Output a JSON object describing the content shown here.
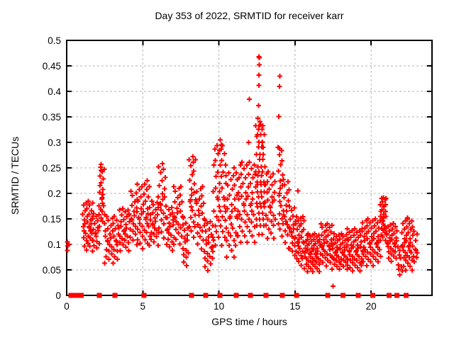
{
  "chart_data": {
    "type": "scatter",
    "title": "Day 353 of 2022, SRMTID for receiver karr",
    "xlabel": "GPS time / hours",
    "ylabel": "SRMTID / TECUs",
    "xlim": [
      0,
      24
    ],
    "ylim": [
      0,
      0.5
    ],
    "x_ticks": [
      0,
      5,
      10,
      15,
      20
    ],
    "x_tick_labels": [
      "0",
      "5",
      "10",
      "15",
      "20"
    ],
    "y_ticks": [
      0,
      0.05,
      0.1,
      0.15,
      0.2,
      0.25,
      0.3,
      0.35,
      0.4,
      0.45,
      0.5
    ],
    "y_tick_labels": [
      "0",
      "0.05",
      "0.1",
      "0.15",
      "0.2",
      "0.25",
      "0.3",
      "0.35",
      "0.4",
      "0.45",
      "0.5"
    ],
    "grid_x": [
      5,
      10,
      15,
      20
    ],
    "grid_y": [
      0.05,
      0.1,
      0.15,
      0.2,
      0.25,
      0.3,
      0.35,
      0.4,
      0.45
    ],
    "grid_on": true,
    "legend": "none",
    "colors": {
      "marker": "#ff0000",
      "grid": "#b4b4b4",
      "axis": "#000000",
      "background": "#ffffff",
      "text": "#000000"
    },
    "marker": {
      "shape": "plus",
      "size": 7,
      "stroke": 2
    },
    "baseline_marker": {
      "shape": "filled-square",
      "size": 7
    },
    "points_explicit": [
      [
        0.05,
        0.105
      ],
      [
        0.06,
        0.097
      ],
      [
        0.05,
        0.088
      ],
      [
        0.15,
        0.1
      ],
      [
        12.62,
        0.468
      ],
      [
        12.66,
        0.466
      ],
      [
        12.65,
        0.452
      ],
      [
        12.64,
        0.432
      ],
      [
        12.63,
        0.412
      ],
      [
        12.6,
        0.372
      ],
      [
        12.56,
        0.347
      ],
      [
        12.7,
        0.34
      ],
      [
        12.75,
        0.335
      ],
      [
        12.5,
        0.312
      ],
      [
        12.85,
        0.3
      ],
      [
        12.9,
        0.29
      ],
      [
        12.0,
        0.385
      ],
      [
        11.95,
        0.3
      ],
      [
        14.0,
        0.43
      ],
      [
        13.97,
        0.41
      ],
      [
        13.94,
        0.351
      ],
      [
        13.99,
        0.288
      ],
      [
        10.1,
        0.305
      ],
      [
        10.15,
        0.295
      ],
      [
        10.05,
        0.285
      ],
      [
        8.3,
        0.272
      ],
      [
        6.3,
        0.258
      ],
      [
        2.25,
        0.257
      ],
      [
        2.27,
        0.245
      ],
      [
        5.3,
        0.225
      ],
      [
        11.0,
        0.25
      ],
      [
        15.2,
        0.205
      ],
      [
        20.8,
        0.192
      ],
      [
        20.82,
        0.175
      ],
      [
        22.4,
        0.152
      ],
      [
        17.5,
        0.018
      ]
    ],
    "point_bands": [
      [
        1.08,
        1.68,
        0.06,
        3,
        0.08,
        0.19
      ],
      [
        1.7,
        2.1,
        0.08,
        3,
        0.08,
        0.165
      ],
      [
        2.15,
        2.45,
        0.05,
        3,
        0.125,
        0.258
      ],
      [
        2.5,
        3.4,
        0.08,
        3,
        0.055,
        0.16
      ],
      [
        3.45,
        4.1,
        0.08,
        3,
        0.08,
        0.175
      ],
      [
        4.15,
        4.6,
        0.08,
        3,
        0.09,
        0.21
      ],
      [
        4.65,
        5.4,
        0.07,
        3,
        0.08,
        0.225
      ],
      [
        5.45,
        6.0,
        0.08,
        3,
        0.09,
        0.19
      ],
      [
        6.05,
        6.5,
        0.07,
        3,
        0.1,
        0.26
      ],
      [
        6.55,
        7.0,
        0.08,
        3,
        0.08,
        0.18
      ],
      [
        7.05,
        7.6,
        0.08,
        3,
        0.09,
        0.22
      ],
      [
        7.65,
        8.0,
        0.08,
        3,
        0.05,
        0.15
      ],
      [
        8.05,
        8.5,
        0.06,
        3,
        0.1,
        0.275
      ],
      [
        8.55,
        9.0,
        0.08,
        3,
        0.08,
        0.22
      ],
      [
        9.05,
        9.6,
        0.08,
        3,
        0.04,
        0.15
      ],
      [
        9.65,
        10.4,
        0.06,
        3,
        0.08,
        0.305
      ],
      [
        10.45,
        11.2,
        0.07,
        3,
        0.06,
        0.25
      ],
      [
        11.25,
        12.35,
        0.07,
        3,
        0.09,
        0.27
      ],
      [
        12.45,
        13.0,
        0.045,
        4,
        0.1,
        0.345
      ],
      [
        13.05,
        13.7,
        0.07,
        3,
        0.1,
        0.25
      ],
      [
        13.9,
        14.2,
        0.05,
        3,
        0.1,
        0.3
      ],
      [
        14.25,
        14.6,
        0.07,
        3,
        0.08,
        0.235
      ],
      [
        14.65,
        15.0,
        0.07,
        3,
        0.07,
        0.18
      ],
      [
        15.05,
        15.6,
        0.06,
        3,
        0.05,
        0.16
      ],
      [
        15.65,
        16.6,
        0.06,
        3,
        0.04,
        0.125
      ],
      [
        16.65,
        17.4,
        0.07,
        3,
        0.05,
        0.145
      ],
      [
        17.45,
        18.4,
        0.07,
        3,
        0.045,
        0.125
      ],
      [
        18.45,
        19.4,
        0.07,
        3,
        0.04,
        0.135
      ],
      [
        19.45,
        20.55,
        0.07,
        3,
        0.05,
        0.155
      ],
      [
        20.6,
        21.0,
        0.05,
        3,
        0.1,
        0.195
      ],
      [
        21.05,
        21.7,
        0.07,
        3,
        0.06,
        0.145
      ],
      [
        21.75,
        22.0,
        0.07,
        2,
        0.035,
        0.1
      ],
      [
        22.05,
        22.7,
        0.06,
        3,
        0.04,
        0.155
      ],
      [
        22.75,
        23.0,
        0.07,
        2,
        0.05,
        0.13
      ]
    ],
    "fraction_cycle": [
      0.5,
      0.72,
      0.3,
      0.88,
      0.42,
      0.62,
      0.15,
      0.78,
      0.55,
      0.25,
      0.92,
      0.38,
      0.68,
      0.08,
      0.82,
      0.33,
      0.58,
      0.2,
      0.95,
      0.48
    ],
    "jitter_cycle": [
      0.02,
      -0.03,
      0.04,
      -0.01,
      0.0,
      0.03,
      -0.04,
      0.01,
      -0.02,
      0.05
    ],
    "baseline_squares_x": [
      0.28,
      0.47,
      0.61,
      0.84,
      0.95,
      2.14,
      3.17,
      5.08,
      8.2,
      9.14,
      10.07,
      11.14,
      12.08,
      13.1,
      14.17,
      15.1,
      17.16,
      18.14,
      19.16,
      20.1,
      21.17,
      21.7,
      22.3
    ]
  }
}
